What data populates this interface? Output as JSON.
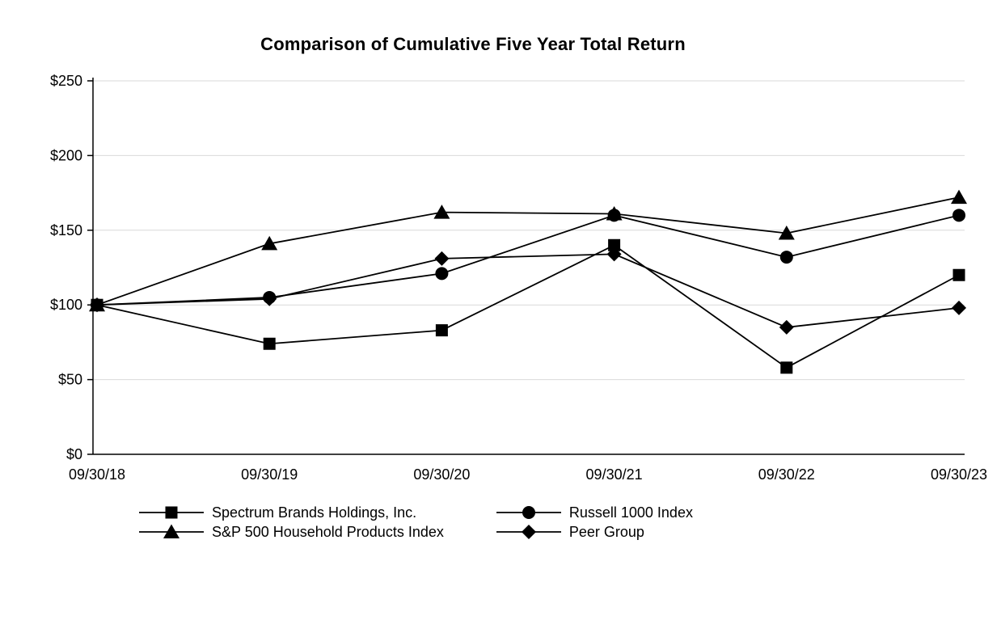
{
  "chart_data": {
    "type": "line",
    "title": "Comparison of Cumulative Five Year Total Return",
    "x_labels": [
      "09/30/18",
      "09/30/19",
      "09/30/20",
      "09/30/21",
      "09/30/22",
      "09/30/23"
    ],
    "y_ticks": [
      0,
      50,
      100,
      150,
      200,
      250
    ],
    "y_tick_labels": [
      "$0",
      "$50",
      "$100",
      "$150",
      "$200",
      "$250"
    ],
    "ylim": [
      0,
      250
    ],
    "grid": "horizontal",
    "legend_position": "bottom",
    "line_color": "#000000",
    "grid_color": "#d9d9d9",
    "series": [
      {
        "name": "Spectrum Brands Holdings, Inc.",
        "marker": "square",
        "values": [
          100,
          74,
          83,
          140,
          58,
          120
        ]
      },
      {
        "name": "Russell 1000 Index",
        "marker": "circle",
        "values": [
          100,
          105,
          121,
          160,
          132,
          160
        ]
      },
      {
        "name": "S&P 500 Household Products Index",
        "marker": "triangle",
        "values": [
          100,
          141,
          162,
          161,
          148,
          172
        ]
      },
      {
        "name": "Peer Group",
        "marker": "diamond",
        "values": [
          100,
          104,
          131,
          134,
          85,
          98
        ]
      }
    ]
  }
}
